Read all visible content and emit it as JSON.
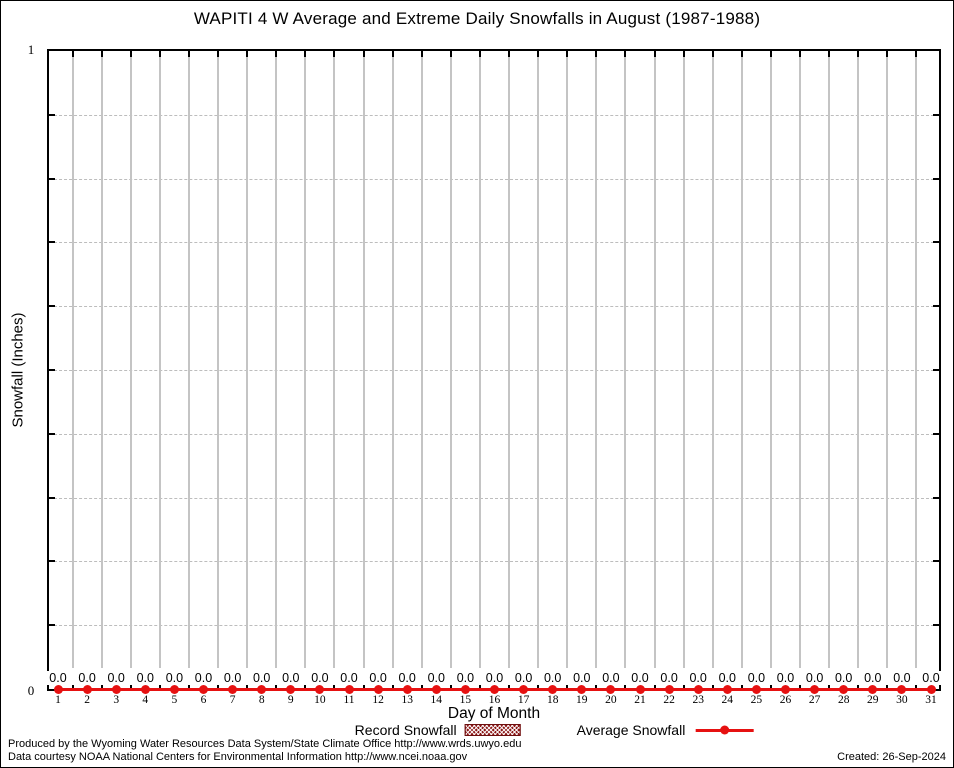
{
  "chart_data": {
    "type": "line",
    "title": "WAPITI 4 W Average and Extreme Daily Snowfalls in August (1987-1988)",
    "xlabel": "Day of Month",
    "ylabel": "Snowfall (Inches)",
    "x": [
      1,
      2,
      3,
      4,
      5,
      6,
      7,
      8,
      9,
      10,
      11,
      12,
      13,
      14,
      15,
      16,
      17,
      18,
      19,
      20,
      21,
      22,
      23,
      24,
      25,
      26,
      27,
      28,
      29,
      30,
      31
    ],
    "ylim": [
      0,
      1
    ],
    "ytick_labels_shown": [
      "0",
      "1"
    ],
    "grid": true,
    "legend_position": "bottom",
    "series": [
      {
        "name": "Record Snowfall",
        "style": "filled-box-hatched",
        "color": "#8b1616",
        "values": [
          0,
          0,
          0,
          0,
          0,
          0,
          0,
          0,
          0,
          0,
          0,
          0,
          0,
          0,
          0,
          0,
          0,
          0,
          0,
          0,
          0,
          0,
          0,
          0,
          0,
          0,
          0,
          0,
          0,
          0,
          0
        ]
      },
      {
        "name": "Average Snowfall",
        "style": "line-with-points",
        "color": "#e61111",
        "values": [
          0,
          0,
          0,
          0,
          0,
          0,
          0,
          0,
          0,
          0,
          0,
          0,
          0,
          0,
          0,
          0,
          0,
          0,
          0,
          0,
          0,
          0,
          0,
          0,
          0,
          0,
          0,
          0,
          0,
          0,
          0
        ]
      }
    ],
    "point_labels": [
      "0.0",
      "0.0",
      "0.0",
      "0.0",
      "0.0",
      "0.0",
      "0.0",
      "0.0",
      "0.0",
      "0.0",
      "0.0",
      "0.0",
      "0.0",
      "0.0",
      "0.0",
      "0.0",
      "0.0",
      "0.0",
      "0.0",
      "0.0",
      "0.0",
      "0.0",
      "0.0",
      "0.0",
      "0.0",
      "0.0",
      "0.0",
      "0.0",
      "0.0",
      "0.0",
      "0.0"
    ]
  },
  "axes": {
    "y_top_label": "1",
    "y_bottom_label": "0"
  },
  "legend": {
    "record_label": "Record Snowfall",
    "average_label": "Average Snowfall"
  },
  "footer": {
    "line1": "Produced by the Wyoming Water Resources Data System/State Climate Office http://www.wrds.uwyo.edu",
    "line2": "Data courtesy NOAA National Centers for Environmental Information http://www.ncei.noaa.gov",
    "created": "Created: 26-Sep-2024"
  },
  "colors": {
    "line_red": "#e61111",
    "record_dark_red": "#8b1616",
    "gridline_gray": "#c4c4c4",
    "axis_black": "#000000",
    "background": "#ffffff"
  }
}
